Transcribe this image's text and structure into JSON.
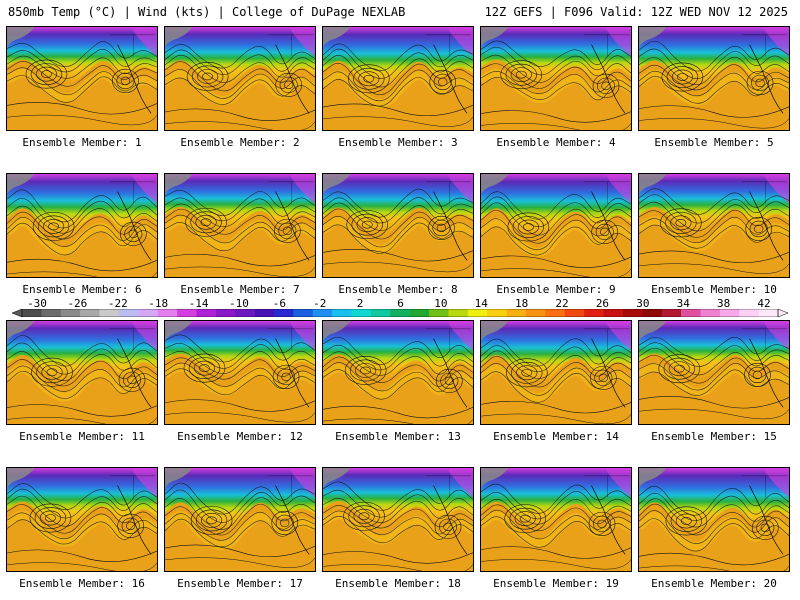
{
  "header": {
    "left": "850mb Temp (°C) | Wind (kts) | College of DuPage NEXLAB",
    "right": "12Z GEFS | F096 Valid: 12Z WED NOV 12 2025"
  },
  "members": [
    "Ensemble Member: 1",
    "Ensemble Member: 2",
    "Ensemble Member: 3",
    "Ensemble Member: 4",
    "Ensemble Member: 5",
    "Ensemble Member: 6",
    "Ensemble Member: 7",
    "Ensemble Member: 8",
    "Ensemble Member: 9",
    "Ensemble Member: 10",
    "Ensemble Member: 11",
    "Ensemble Member: 12",
    "Ensemble Member: 13",
    "Ensemble Member: 14",
    "Ensemble Member: 15",
    "Ensemble Member: 16",
    "Ensemble Member: 17",
    "Ensemble Member: 18",
    "Ensemble Member: 19",
    "Ensemble Member: 20"
  ],
  "colorbar": {
    "ticks": [
      "-30",
      "-26",
      "-22",
      "-18",
      "-14",
      "-10",
      "-6",
      "-2",
      "2",
      "6",
      "10",
      "14",
      "18",
      "22",
      "26",
      "30",
      "34",
      "38",
      "42"
    ],
    "colors": [
      "#4d4d4d",
      "#6b6b6b",
      "#8a8a8a",
      "#a8a8a8",
      "#c9c9c9",
      "#bcbcf0",
      "#d5a8f5",
      "#e57ff0",
      "#d43fe0",
      "#b020d8",
      "#8a18c8",
      "#6a18c0",
      "#4a10b8",
      "#2828d0",
      "#1a60e0",
      "#2090f0",
      "#18c0f0",
      "#10d8d0",
      "#10c8a0",
      "#10b060",
      "#20a830",
      "#70c018",
      "#b8d810",
      "#f0f010",
      "#f8d010",
      "#f8b010",
      "#f89010",
      "#f87010",
      "#f04810",
      "#e02010",
      "#c81010",
      "#a80a0a",
      "#900808",
      "#b01830",
      "#e050a0",
      "#f080d0",
      "#f8a8e8",
      "#fcd0f4",
      "#fde8fa"
    ],
    "left_end_color": "#5a5a5a",
    "right_end_color": "#fde8fa"
  },
  "colors": {
    "ocean_warm": "#e9a11a",
    "ocean_mid": "#f5c418",
    "cold": "#d43fe0",
    "very_cold": "#5a2ab8",
    "blue": "#2f70e0",
    "cyan": "#19c0d8",
    "green": "#28b040",
    "land_gray": "#8a8a8a"
  }
}
